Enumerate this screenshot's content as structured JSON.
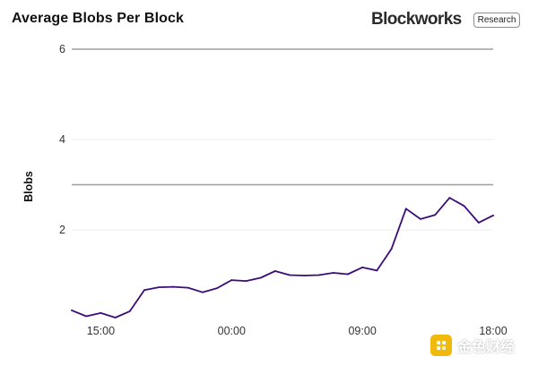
{
  "header": {
    "title": "Average Blobs Per Block",
    "brand": "Blockworks",
    "badge": "Research"
  },
  "watermark": {
    "text": "金色财经"
  },
  "colors": {
    "line": "#3d0b7a",
    "target_line": "#9e9e9e",
    "grid": "#ececec",
    "watermark_logo": "#f0b90b"
  },
  "chart_data": {
    "type": "line",
    "title": "Average Blobs Per Block",
    "xlabel": "",
    "ylabel": "Blobs",
    "ylim": [
      0,
      6
    ],
    "y_ticks": [
      2,
      4,
      6
    ],
    "x_ticks": [
      {
        "label": "15:00",
        "index": 2
      },
      {
        "label": "00:00",
        "index": 11
      },
      {
        "label": "09:00",
        "index": 20
      },
      {
        "label": "18:00",
        "index": 29
      }
    ],
    "grid": true,
    "reference_line": 3,
    "series": [
      {
        "values": [
          0.22,
          0.09,
          0.16,
          0.06,
          0.2,
          0.67,
          0.73,
          0.74,
          0.72,
          0.62,
          0.71,
          0.89,
          0.87,
          0.94,
          1.09,
          1.0,
          0.99,
          1.0,
          1.05,
          1.02,
          1.17,
          1.1,
          1.58,
          2.47,
          2.24,
          2.33,
          2.71,
          2.53,
          2.16,
          2.32
        ]
      }
    ]
  }
}
